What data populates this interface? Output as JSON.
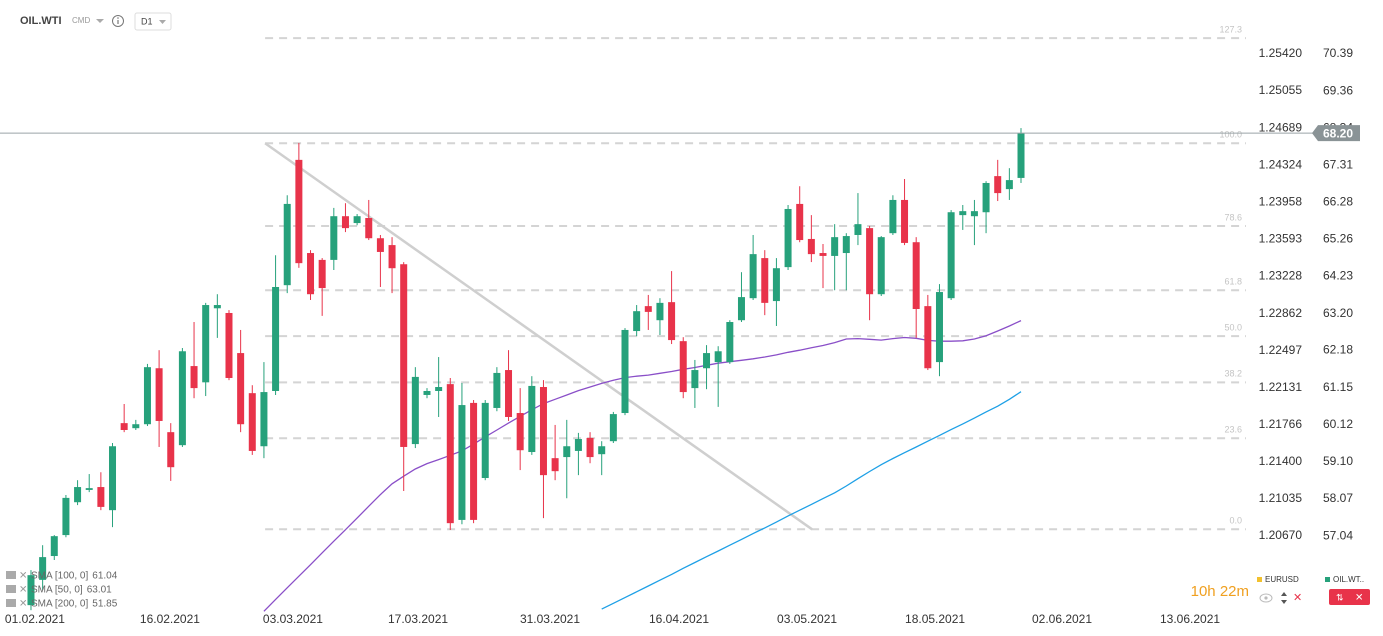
{
  "header": {
    "symbol": "OIL.WTI",
    "market": "CMD",
    "interval": "D1"
  },
  "chart_data": {
    "type": "candlestick",
    "up_color": "#26a17b",
    "down_color": "#e8334a",
    "open": [
      55.13,
      55.83,
      56.49,
      57.07,
      57.98,
      58.32,
      58.4,
      57.76,
      60.17,
      60.03,
      60.14,
      61.69,
      59.92,
      59.56,
      61.75,
      61.3,
      63.35,
      63.22,
      62.11,
      61.0,
      59.53,
      61.06,
      63.99,
      67.46,
      64.88,
      64.69,
      64.69,
      65.9,
      65.71,
      65.85,
      65.29,
      65.1,
      64.57,
      59.59,
      60.95,
      61.06,
      61.25,
      57.49,
      60.73,
      58.65,
      60.59,
      61.64,
      60.45,
      59.37,
      61.17,
      59.2,
      59.23,
      59.4,
      59.76,
      59.31,
      59.67,
      60.45,
      62.72,
      63.41,
      63.02,
      63.52,
      62.44,
      61.14,
      61.69,
      61.86,
      61.86,
      63.02,
      63.63,
      64.74,
      63.55,
      64.49,
      66.24,
      65.27,
      64.88,
      64.8,
      64.88,
      65.38,
      65.57,
      63.74,
      65.43,
      66.35,
      65.18,
      63.41,
      61.86,
      63.63,
      65.93,
      65.9,
      66.01,
      67.01,
      66.65,
      66.96
    ],
    "high": [
      56.1,
      56.79,
      57.07,
      58.18,
      58.59,
      58.76,
      58.81,
      59.62,
      60.7,
      60.26,
      61.81,
      62.19,
      60.17,
      62.25,
      62.97,
      63.5,
      63.74,
      63.3,
      62.75,
      61.22,
      61.86,
      64.82,
      66.48,
      67.93,
      64.96,
      64.74,
      66.13,
      66.26,
      65.96,
      66.35,
      65.38,
      65.32,
      64.63,
      61.72,
      61.14,
      62.0,
      61.42,
      61.28,
      60.81,
      60.81,
      61.72,
      62.19,
      61.14,
      61.47,
      61.36,
      60.12,
      60.26,
      59.9,
      59.92,
      59.67,
      60.48,
      62.8,
      63.44,
      63.72,
      63.63,
      64.38,
      62.55,
      61.92,
      62.33,
      62.3,
      63.02,
      64.35,
      65.38,
      64.96,
      64.74,
      66.21,
      66.73,
      65.93,
      65.13,
      65.68,
      65.43,
      66.54,
      65.63,
      65.35,
      66.48,
      66.93,
      65.32,
      63.72,
      64.02,
      66.07,
      66.21,
      66.35,
      66.87,
      67.46,
      67.23,
      68.34
    ],
    "low": [
      54.99,
      55.55,
      56.38,
      57.01,
      57.9,
      58.26,
      57.76,
      57.29,
      59.92,
      59.98,
      60.09,
      59.51,
      58.57,
      59.51,
      60.86,
      60.92,
      62.53,
      61.36,
      59.92,
      59.29,
      59.2,
      60.95,
      63.77,
      64.47,
      63.58,
      63.14,
      64.41,
      65.46,
      65.65,
      65.24,
      63.94,
      63.77,
      58.29,
      59.48,
      60.86,
      60.34,
      57.21,
      57.37,
      57.4,
      58.59,
      60.5,
      60.23,
      58.87,
      59.29,
      57.54,
      58.59,
      58.09,
      58.73,
      59.06,
      58.73,
      59.62,
      60.39,
      62.58,
      62.75,
      62.61,
      62.36,
      60.86,
      60.59,
      61.11,
      60.62,
      61.81,
      62.97,
      63.58,
      63.16,
      62.86,
      64.41,
      65.18,
      64.63,
      63.91,
      63.85,
      63.85,
      65.1,
      63.02,
      63.69,
      65.38,
      65.1,
      62.53,
      61.64,
      61.47,
      63.58,
      65.52,
      65.1,
      65.43,
      66.32,
      66.35,
      66.82
    ],
    "close": [
      55.96,
      56.46,
      57.04,
      58.1,
      58.4,
      58.37,
      57.85,
      59.53,
      59.98,
      60.14,
      61.72,
      60.23,
      58.95,
      62.16,
      61.14,
      63.44,
      63.44,
      61.42,
      60.14,
      59.4,
      61.03,
      63.94,
      66.24,
      64.6,
      63.74,
      63.91,
      65.9,
      65.57,
      65.9,
      65.29,
      64.91,
      64.46,
      59.51,
      61.45,
      61.06,
      61.17,
      57.4,
      60.67,
      57.49,
      60.73,
      61.56,
      60.34,
      59.42,
      61.2,
      58.73,
      58.84,
      59.53,
      59.73,
      59.23,
      59.53,
      60.42,
      62.75,
      63.27,
      63.25,
      63.5,
      62.47,
      61.03,
      61.64,
      62.11,
      62.16,
      62.97,
      63.66,
      64.85,
      63.5,
      64.46,
      66.1,
      65.24,
      64.85,
      64.8,
      65.32,
      65.35,
      65.68,
      63.74,
      65.32,
      66.35,
      65.16,
      63.33,
      61.69,
      63.8,
      66.01,
      66.04,
      66.04,
      66.82,
      66.54,
      66.9,
      68.2
    ],
    "ylim": [
      54.94,
      71.61
    ],
    "yticks": [
      70.39,
      69.36,
      68.34,
      67.31,
      66.28,
      65.26,
      64.23,
      {
        "value": 63.2,
        "label": "63.20"
      },
      62.18,
      61.15,
      60.12,
      {
        "value": 59.1,
        "label": "59.10"
      },
      58.07,
      57.04
    ],
    "y2lim": [
      1.19921,
      1.25854
    ],
    "y2ticks": [
      {
        "value": 1.2542,
        "label": "1.25420"
      },
      1.25055,
      1.24689,
      1.24324,
      1.23958,
      1.23593,
      1.23228,
      1.22862,
      1.22497,
      1.22131,
      1.21766,
      {
        "value": 1.214,
        "label": "1.21400"
      },
      1.21035,
      {
        "value": 1.2067,
        "label": "1.20670"
      }
    ],
    "xlim": [
      -2.66,
      104.66
    ],
    "xticks": [
      {
        "value": 0.34,
        "label": "01.02.2021"
      },
      {
        "value": 11.93,
        "label": "16.02.2021"
      },
      {
        "value": 22.49,
        "label": "03.03.2021"
      },
      {
        "value": 33.23,
        "label": "17.03.2021"
      },
      {
        "value": 44.56,
        "label": "31.03.2021"
      },
      {
        "value": 55.64,
        "label": "16.04.2021"
      },
      {
        "value": 66.63,
        "label": "03.05.2021"
      },
      {
        "value": 77.62,
        "label": "18.05.2021"
      },
      {
        "value": 88.52,
        "label": "02.06.2021"
      },
      {
        "value": 99.51,
        "label": "13.06.2021"
      }
    ],
    "series": [
      {
        "name": "SMA [100, 0]",
        "color": "#1ea0e6",
        "last": 61.04,
        "values": [
          null,
          null,
          null,
          null,
          null,
          null,
          null,
          null,
          null,
          null,
          null,
          null,
          null,
          null,
          null,
          null,
          null,
          null,
          null,
          null,
          null,
          null,
          null,
          null,
          null,
          null,
          null,
          null,
          null,
          null,
          null,
          null,
          null,
          null,
          null,
          null,
          null,
          null,
          null,
          null,
          null,
          null,
          null,
          null,
          null,
          null,
          null,
          null,
          null,
          55.02,
          55.18,
          55.34,
          55.5,
          55.66,
          55.82,
          55.98,
          56.15,
          56.31,
          56.47,
          56.63,
          56.79,
          56.95,
          57.11,
          57.27,
          57.43,
          57.6,
          57.76,
          57.92,
          58.08,
          58.24,
          58.43,
          58.63,
          58.83,
          59.02,
          59.19,
          59.35,
          59.51,
          59.67,
          59.83,
          59.99,
          60.15,
          60.31,
          60.48,
          60.64,
          60.83,
          61.04
        ]
      },
      {
        "name": "SMA [50, 0]",
        "color": "#8a4fc8",
        "last": 63.01,
        "values": [
          null,
          null,
          null,
          null,
          null,
          null,
          null,
          null,
          null,
          null,
          null,
          null,
          null,
          null,
          null,
          null,
          null,
          null,
          null,
          null,
          54.96,
          55.29,
          55.61,
          55.93,
          56.25,
          56.58,
          56.9,
          57.22,
          57.54,
          57.87,
          58.19,
          58.49,
          58.7,
          58.9,
          59.05,
          59.16,
          59.28,
          59.4,
          59.59,
          59.79,
          59.98,
          60.17,
          60.36,
          60.54,
          60.71,
          60.83,
          60.95,
          61.07,
          61.17,
          61.27,
          61.36,
          61.43,
          61.47,
          61.5,
          61.55,
          61.6,
          61.66,
          61.71,
          61.77,
          61.83,
          61.87,
          61.91,
          61.95,
          62.0,
          62.06,
          62.13,
          62.19,
          62.26,
          62.32,
          62.4,
          62.5,
          62.51,
          62.49,
          62.47,
          62.51,
          62.54,
          62.52,
          62.46,
          62.44,
          62.44,
          62.45,
          62.5,
          62.59,
          62.72,
          62.86,
          63.01
        ]
      },
      {
        "name": "SMA [200, 0]",
        "last": 51.85
      }
    ],
    "last_price": {
      "value": 68.2,
      "label": "68.20"
    },
    "trendline": {
      "x": [
        20.1,
        67.06
      ],
      "y": [
        67.92,
        57.23
      ]
    },
    "fibonacci": {
      "levels": [
        127.3,
        {
          "value": 100,
          "label": "100.0"
        },
        78.6,
        61.8,
        {
          "value": 50,
          "label": "50.0"
        },
        38.2,
        23.6,
        {
          "value": 0,
          "label": "0.0"
        }
      ],
      "prices": [
        70.83,
        67.92,
        65.63,
        63.85,
        62.58,
        61.3,
        59.75,
        57.23
      ]
    },
    "countdown": "10h 22m",
    "instruments": [
      {
        "name": "EURUSD",
        "color": "#f2c12e"
      },
      {
        "name": "OIL.WT..",
        "color": "#26a17b"
      }
    ]
  }
}
